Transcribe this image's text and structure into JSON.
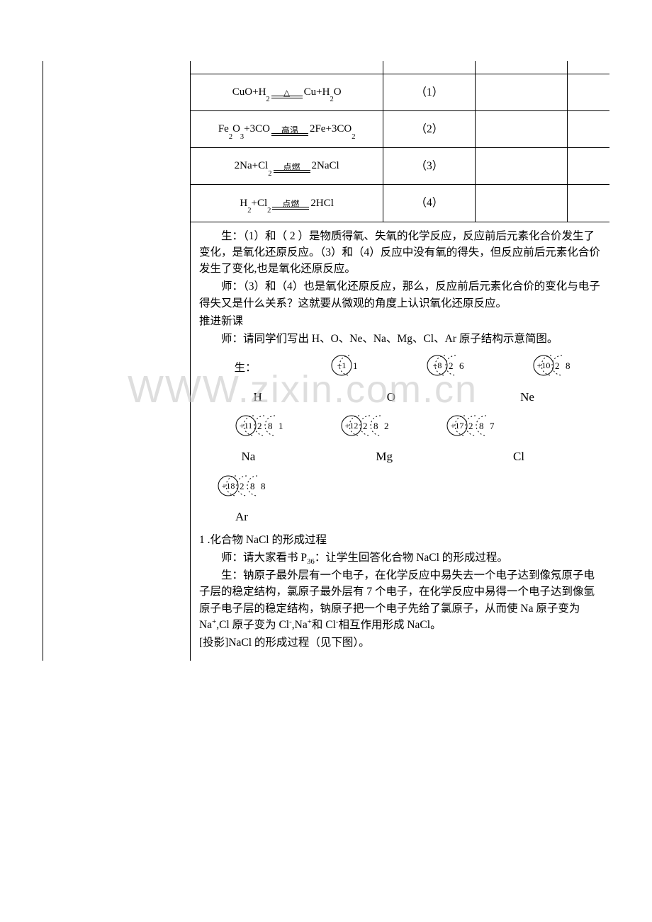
{
  "colors": {
    "border": "#000000",
    "text": "#000000",
    "bg": "#ffffff",
    "watermark": "#c9c9c9"
  },
  "table": {
    "rows": [
      {
        "lhs": "CuO+H",
        "lhs_sub": "2",
        "cond": "△",
        "rhs": "Cu+H",
        "rhs_sub": "2",
        "rhs_tail": "O",
        "label": "（1）",
        "arrow_w": 44
      },
      {
        "lhs": "Fe",
        "lhs_pre_sub": "2",
        "lhs_mid": "O",
        "lhs_sub": "3",
        "lhs_tail": "+3CO",
        "cond": "高温",
        "rhs": "2Fe+3CO",
        "rhs_sub": "2",
        "rhs_tail": "",
        "label": "（2）",
        "arrow_w": 52
      },
      {
        "lhs": "2Na+Cl",
        "lhs_sub": "2",
        "cond": "点燃",
        "rhs": "2NaCl",
        "rhs_sub": "",
        "rhs_tail": "",
        "label": "（3）",
        "arrow_w": 52
      },
      {
        "lhs": "H",
        "lhs_pre_sub": "2",
        "lhs_mid": "+Cl",
        "lhs_sub": "2",
        "cond": "点燃",
        "rhs": "2HCl",
        "rhs_sub": "",
        "rhs_tail": "",
        "label": "（4）",
        "arrow_w": 52
      }
    ]
  },
  "para": {
    "p1": "生：（1）和（ 2 ）是物质得氧、失氧的化学反应，反应前后元素化合价发生了变化，是氧化还原反应。（3）和（4）反应中没有氧的得失，但反应前后元素化合价发生了变化,也是氧化还原反应。",
    "p2": "师：（3）和（4）也是氧化还原反应，那么，反应前后元素化合价的变化与电子得失又是什么关系？这就要从微观的角度上认识氧化还原反应。",
    "p3": "推进新课",
    "p4": "师：请同学们写出 H、O、Ne、Na、Mg、Cl、Ar 原子结构示意简图。",
    "sheng": "生：",
    "sec1": "1 .化合物 NaCl 的形成过程",
    "p5": "师：请大家看书 P",
    "p5_sub": "36",
    "p5_tail": "：让学生回答化合物 NaCl 的形成过程。",
    "p6a": "生：钠原子最外层有一个电子，在化学反应中易失去一个电子达到像氖原子电子层的稳定结构，氯原子最外层有 7 个电子，在化学反应中易得一个电子达到像氩原子电子层的稳定结构，钠原子把一个电子先给了氯原子，从而使 Na 原子变为 Na",
    "p6b": ",Cl 原子变为 Cl",
    "p6c": ",Na",
    "p6d": "和 Cl",
    "p6e": "相互作用形成 NaCl。",
    "p7": "[投影]NaCl 的形成过程（见下图）。"
  },
  "atoms": {
    "row1": [
      {
        "z": "+1",
        "shells": [
          "1"
        ],
        "label": "H"
      },
      {
        "z": "+8",
        "shells": [
          "2",
          "6"
        ],
        "label": "O"
      },
      {
        "z": "+10",
        "shells": [
          "2",
          "8"
        ],
        "label": "Ne"
      }
    ],
    "row2": [
      {
        "z": "+11",
        "shells": [
          "2",
          "8",
          "1"
        ],
        "label": "Na"
      },
      {
        "z": "+12",
        "shells": [
          "2",
          "8",
          "2"
        ],
        "label": "Mg"
      },
      {
        "z": "+17",
        "shells": [
          "2",
          "8",
          "7"
        ],
        "label": "Cl"
      }
    ],
    "row3": [
      {
        "z": "+18",
        "shells": [
          "2",
          "8",
          "8"
        ],
        "label": "Ar"
      }
    ]
  },
  "watermark": "WWW.zixin.com.cn"
}
